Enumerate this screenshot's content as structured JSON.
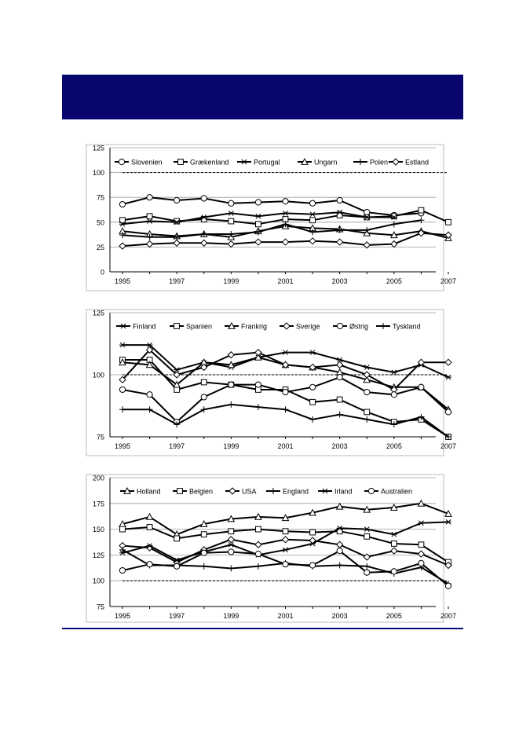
{
  "colors": {
    "header_band": "#06066e",
    "footer_rule": "#0a0a7a",
    "series_line": "#000000"
  },
  "chart_data": [
    {
      "type": "line",
      "title": "",
      "xlabel": "",
      "ylabel": "",
      "x": [
        1995,
        1996,
        1997,
        1998,
        1999,
        2000,
        2001,
        2002,
        2003,
        2004,
        2005,
        2006,
        2007
      ],
      "x_tick_labels": [
        "1995",
        "1997",
        "1999",
        "2001",
        "2003",
        "2005",
        "2007"
      ],
      "xlim": [
        1995,
        2007
      ],
      "ylim": [
        0,
        125
      ],
      "y_ticks": [
        "0",
        "25",
        "50",
        "75",
        "100",
        "125"
      ],
      "grid": true,
      "reference_line": 100,
      "legend_position": "top",
      "series": [
        {
          "name": "Slovenien",
          "marker": "circle",
          "values": [
            68,
            75,
            72,
            74,
            69,
            70,
            71,
            69,
            72,
            60,
            57,
            59,
            null
          ]
        },
        {
          "name": "Grækenland",
          "marker": "square",
          "values": [
            52,
            56,
            51,
            53,
            51,
            48,
            53,
            52,
            57,
            55,
            56,
            62,
            50
          ]
        },
        {
          "name": "Portugal",
          "marker": "star",
          "values": [
            48,
            51,
            50,
            55,
            59,
            56,
            59,
            58,
            60,
            55,
            55,
            null,
            null
          ]
        },
        {
          "name": "Ungarn",
          "marker": "triangle",
          "values": [
            41,
            38,
            36,
            38,
            35,
            41,
            46,
            44,
            43,
            39,
            37,
            41,
            34
          ]
        },
        {
          "name": "Polen",
          "marker": "plus",
          "values": [
            37,
            35,
            35,
            38,
            38,
            40,
            48,
            40,
            42,
            42,
            48,
            52,
            null
          ]
        },
        {
          "name": "Estland",
          "marker": "diamond",
          "values": [
            26,
            28,
            29,
            29,
            28,
            30,
            30,
            31,
            30,
            27,
            28,
            39,
            37
          ]
        }
      ]
    },
    {
      "type": "line",
      "title": "",
      "xlabel": "",
      "ylabel": "",
      "x": [
        1995,
        1996,
        1997,
        1998,
        1999,
        2000,
        2001,
        2002,
        2003,
        2004,
        2005,
        2006,
        2007
      ],
      "x_tick_labels": [
        "1995",
        "1997",
        "1999",
        "2001",
        "2003",
        "2005",
        "2007"
      ],
      "xlim": [
        1995,
        2007
      ],
      "ylim": [
        75,
        125
      ],
      "y_ticks": [
        "75",
        "100",
        "125"
      ],
      "grid": true,
      "reference_line": 100,
      "legend_position": "top",
      "series": [
        {
          "name": "Finland",
          "marker": "star",
          "values": [
            112,
            112,
            102,
            105,
            103,
            107,
            109,
            109,
            106,
            103,
            101,
            104,
            99
          ]
        },
        {
          "name": "Spanien",
          "marker": "square",
          "values": [
            106,
            106,
            94,
            97,
            96,
            94,
            94,
            89,
            90,
            85,
            81,
            82,
            74
          ]
        },
        {
          "name": "Frankrig",
          "marker": "triangle",
          "values": [
            105,
            104,
            96,
            105,
            104,
            107,
            104,
            103,
            101,
            98,
            95,
            95,
            86
          ]
        },
        {
          "name": "Sverige",
          "marker": "diamond",
          "values": [
            98,
            110,
            100,
            103,
            108,
            109,
            104,
            103,
            104,
            100,
            94,
            105,
            105
          ]
        },
        {
          "name": "Østrig",
          "marker": "circle",
          "values": [
            94,
            92,
            81,
            91,
            96,
            96,
            93,
            95,
            99,
            93,
            92,
            95,
            85
          ]
        },
        {
          "name": "Tyskland",
          "marker": "plus",
          "values": [
            86,
            86,
            80,
            86,
            88,
            87,
            86,
            82,
            84,
            82,
            80,
            83,
            74
          ]
        }
      ]
    },
    {
      "type": "line",
      "title": "",
      "xlabel": "",
      "ylabel": "",
      "x": [
        1995,
        1996,
        1997,
        1998,
        1999,
        2000,
        2001,
        2002,
        2003,
        2004,
        2005,
        2006,
        2007
      ],
      "x_tick_labels": [
        "1995",
        "1997",
        "1999",
        "2001",
        "2003",
        "2005",
        "2007"
      ],
      "xlim": [
        1995,
        2007
      ],
      "ylim": [
        75,
        200
      ],
      "y_ticks": [
        "75",
        "100",
        "125",
        "150",
        "175",
        "200"
      ],
      "grid": true,
      "reference_line": 100,
      "legend_position": "top",
      "series": [
        {
          "name": "Holland",
          "marker": "triangle",
          "values": [
            155,
            162,
            145,
            155,
            160,
            162,
            161,
            166,
            172,
            169,
            171,
            175,
            165
          ]
        },
        {
          "name": "Belgien",
          "marker": "square",
          "values": [
            150,
            152,
            141,
            145,
            148,
            150,
            148,
            147,
            148,
            143,
            136,
            135,
            118
          ]
        },
        {
          "name": "USA",
          "marker": "diamond",
          "values": [
            134,
            132,
            118,
            130,
            140,
            135,
            140,
            139,
            135,
            123,
            129,
            126,
            115
          ]
        },
        {
          "name": "England",
          "marker": "plus",
          "values": [
            130,
            115,
            115,
            114,
            112,
            114,
            117,
            114,
            115,
            114,
            107,
            113,
            97
          ]
        },
        {
          "name": "Irland",
          "marker": "star",
          "values": [
            127,
            134,
            120,
            128,
            135,
            125,
            130,
            136,
            151,
            150,
            145,
            156,
            157
          ]
        },
        {
          "name": "Australien",
          "marker": "circle",
          "values": [
            110,
            116,
            114,
            127,
            128,
            126,
            116,
            115,
            129,
            108,
            109,
            117,
            95
          ]
        }
      ]
    }
  ]
}
